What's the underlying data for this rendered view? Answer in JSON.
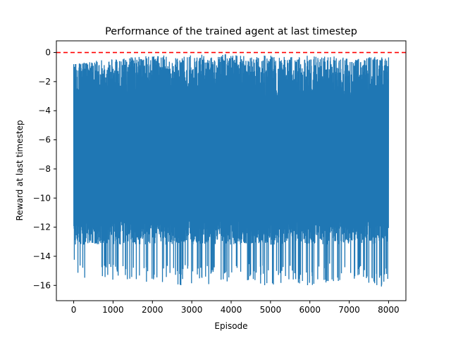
{
  "chart_data": {
    "type": "line",
    "title": "Performance of the trained agent at last timestep",
    "xlabel": "Episode",
    "ylabel": "Reward at last timestep",
    "xlim": [
      -440,
      8440
    ],
    "ylim": [
      -17.05,
      0.8
    ],
    "xticks": [
      0,
      1000,
      2000,
      3000,
      4000,
      5000,
      6000,
      7000,
      8000
    ],
    "xtick_labels": [
      "0",
      "1000",
      "2000",
      "3000",
      "4000",
      "5000",
      "6000",
      "7000",
      "8000"
    ],
    "yticks": [
      0,
      -2,
      -4,
      -6,
      -8,
      -10,
      -12,
      -14,
      -16
    ],
    "ytick_labels": [
      "0",
      "−2",
      "−4",
      "−6",
      "−8",
      "−10",
      "−12",
      "−14",
      "−16"
    ],
    "grid": false,
    "series": [
      {
        "color": "#1f77b4",
        "x_range": [
          0,
          8000
        ],
        "upper_envelope": [
          [
            0,
            -0.8
          ],
          [
            500,
            -0.6
          ],
          [
            1000,
            -0.4
          ],
          [
            1500,
            -0.3
          ],
          [
            2000,
            -0.2
          ],
          [
            2500,
            -0.2
          ],
          [
            3000,
            -0.15
          ],
          [
            3500,
            -0.1
          ],
          [
            4000,
            -0.1
          ],
          [
            4500,
            -0.2
          ],
          [
            5000,
            -0.2
          ],
          [
            5500,
            -0.3
          ],
          [
            6000,
            -0.2
          ],
          [
            6500,
            -0.2
          ],
          [
            7000,
            -0.3
          ],
          [
            7500,
            -0.3
          ],
          [
            8000,
            -0.3
          ]
        ],
        "lower_envelope": [
          [
            0,
            -15.2
          ],
          [
            100,
            -15.7
          ],
          [
            500,
            -15.5
          ],
          [
            1000,
            -15.8
          ],
          [
            1500,
            -15.6
          ],
          [
            2000,
            -15.9
          ],
          [
            2500,
            -16.1
          ],
          [
            3000,
            -15.9
          ],
          [
            3500,
            -16.0
          ],
          [
            4000,
            -15.9
          ],
          [
            4500,
            -15.8
          ],
          [
            5000,
            -16.1
          ],
          [
            5500,
            -16.0
          ],
          [
            6000,
            -16.2
          ],
          [
            6500,
            -15.9
          ],
          [
            7000,
            -16.0
          ],
          [
            7500,
            -16.1
          ],
          [
            8000,
            -16.2
          ]
        ],
        "dense_band": [
          -13.2,
          -0.8
        ]
      }
    ],
    "reference_line": {
      "y": 0,
      "color": "#ff0000",
      "style": "dashed"
    }
  }
}
